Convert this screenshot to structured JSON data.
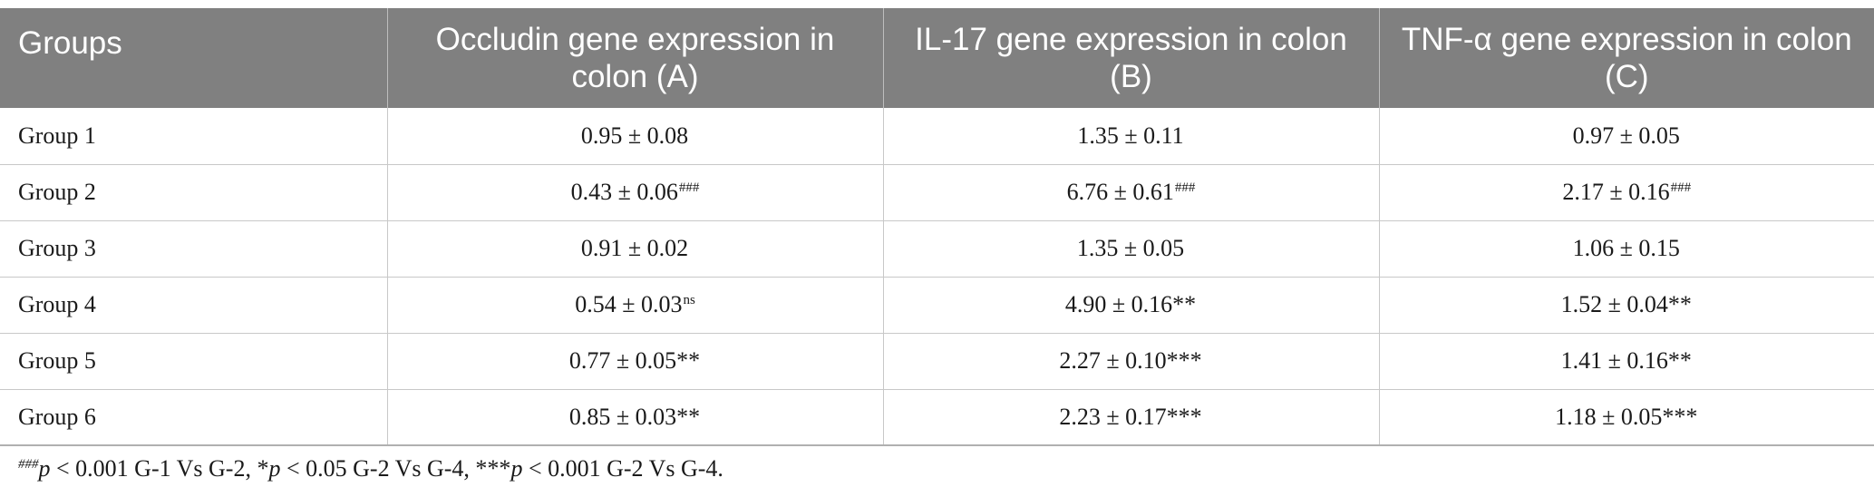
{
  "table": {
    "headers": [
      "Groups",
      "Occludin gene expression in colon (A)",
      "IL-17 gene expression in colon (B)",
      "TNF-α gene expression in colon (C)"
    ],
    "rows": [
      {
        "group": "Group 1",
        "cells": [
          {
            "value": "0.95 ± 0.08",
            "mark": ""
          },
          {
            "value": "1.35 ± 0.11",
            "mark": ""
          },
          {
            "value": "0.97 ± 0.05",
            "mark": ""
          }
        ]
      },
      {
        "group": "Group 2",
        "cells": [
          {
            "value": "0.43 ± 0.06",
            "mark": "###"
          },
          {
            "value": "6.76 ± 0.61",
            "mark": "###"
          },
          {
            "value": "2.17 ± 0.16",
            "mark": "###"
          }
        ]
      },
      {
        "group": "Group 3",
        "cells": [
          {
            "value": "0.91 ± 0.02",
            "mark": ""
          },
          {
            "value": "1.35 ± 0.05",
            "mark": ""
          },
          {
            "value": "1.06 ± 0.15",
            "mark": ""
          }
        ]
      },
      {
        "group": "Group 4",
        "cells": [
          {
            "value": "0.54 ± 0.03",
            "mark": "ns"
          },
          {
            "value": "4.90 ± 0.16**",
            "mark": ""
          },
          {
            "value": "1.52 ± 0.04**",
            "mark": ""
          }
        ]
      },
      {
        "group": "Group 5",
        "cells": [
          {
            "value": "0.77 ± 0.05**",
            "mark": ""
          },
          {
            "value": "2.27 ± 0.10***",
            "mark": ""
          },
          {
            "value": "1.41 ± 0.16**",
            "mark": ""
          }
        ]
      },
      {
        "group": "Group 6",
        "cells": [
          {
            "value": "0.85 ± 0.03**",
            "mark": ""
          },
          {
            "value": "2.23 ± 0.17***",
            "mark": ""
          },
          {
            "value": "1.18 ± 0.05***",
            "mark": ""
          }
        ]
      }
    ]
  },
  "footnote": {
    "m1": "###",
    "p1": "p",
    "t1": " < 0.001 G-1 Vs G-2, *",
    "p2": "p",
    "t2": " < 0.05 G-2 Vs G-4, ***",
    "p3": "p",
    "t3": " < 0.001 G-2 Vs G-4."
  },
  "colors": {
    "header_bg": "#808080",
    "header_text": "#ffffff",
    "rule": "#c8c8c8"
  }
}
